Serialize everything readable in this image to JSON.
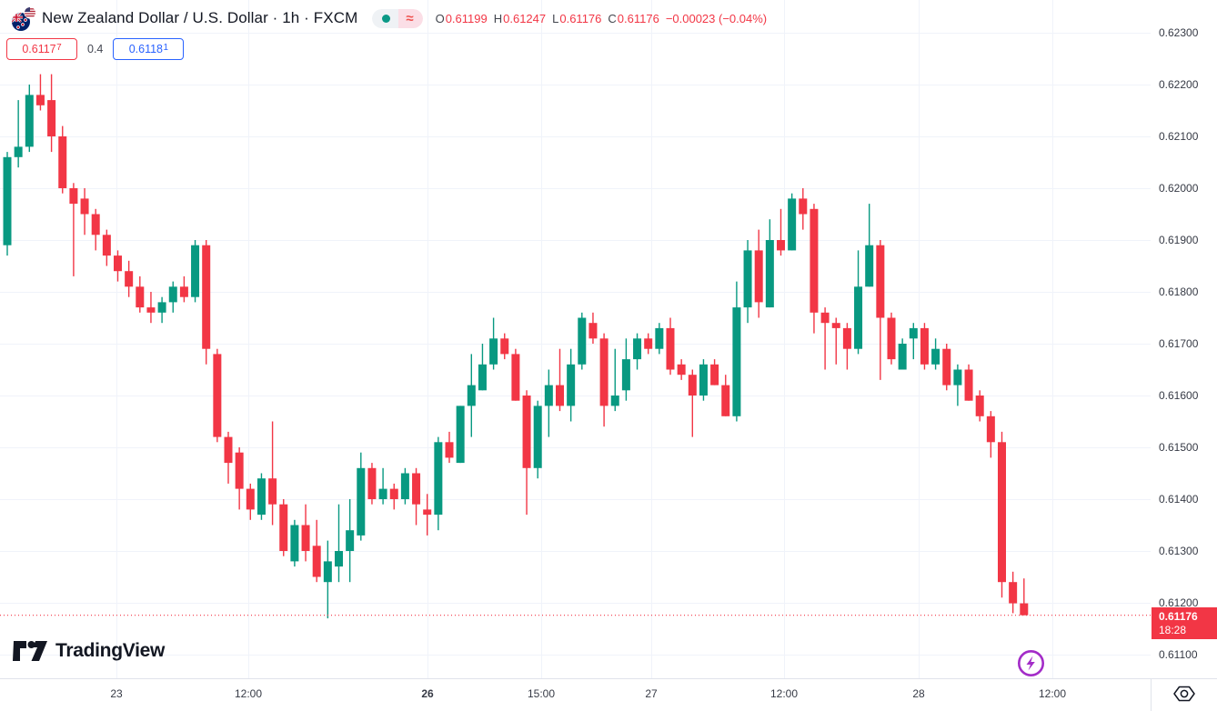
{
  "header": {
    "title": "New Zealand Dollar / U.S. Dollar · 1h · FXCM",
    "market_status_icon": "market-open-dot",
    "data_mode_icon": "approximate-data",
    "ohlc": {
      "o_label": "O",
      "o": "0.61199",
      "h_label": "H",
      "h": "0.61247",
      "l_label": "L",
      "l": "0.61176",
      "c_label": "C",
      "c": "0.61176",
      "change": "−0.00023 (−0.04%)"
    },
    "bid": {
      "main": "0.6117",
      "sup": "7"
    },
    "spread": "0.4",
    "ask": {
      "main": "0.6118",
      "sup": "1"
    }
  },
  "logo": {
    "text": "TradingView"
  },
  "colors": {
    "up": "#089981",
    "down": "#f23645",
    "sell": "#f23645",
    "buy": "#2962ff",
    "grid": "#f0f3fa",
    "axis_text": "#363a45",
    "title_text": "#131722",
    "badge_bg": "#f23645",
    "fab_purple": "#a32cc8"
  },
  "chart_data": {
    "type": "candlestick",
    "title": "New Zealand Dollar / U.S. Dollar",
    "interval": "1h",
    "venue": "FXCM",
    "grid": true,
    "ylim": [
      0.611,
      0.6235
    ],
    "last_price": "0.61176",
    "countdown": "18:28",
    "price_axis_ticks": [
      "0.62300",
      "0.62200",
      "0.62100",
      "0.62000",
      "0.61900",
      "0.61800",
      "0.61700",
      "0.61600",
      "0.61500",
      "0.61400",
      "0.61300",
      "0.61200",
      "0.61100"
    ],
    "time_axis_ticks": [
      {
        "label": "23",
        "x": 128,
        "bold": false
      },
      {
        "label": "12:00",
        "x": 273,
        "bold": false
      },
      {
        "label": "26",
        "x": 470,
        "bold": true
      },
      {
        "label": "15:00",
        "x": 595,
        "bold": false
      },
      {
        "label": "27",
        "x": 716,
        "bold": false
      },
      {
        "label": "12:00",
        "x": 862,
        "bold": false
      },
      {
        "label": "28",
        "x": 1010,
        "bold": false
      },
      {
        "label": "12:00",
        "x": 1157,
        "bold": false
      }
    ],
    "candles": [
      [
        0.6189,
        0.6207,
        0.6187,
        0.6206
      ],
      [
        0.6206,
        0.6217,
        0.6204,
        0.6208
      ],
      [
        0.6208,
        0.622,
        0.6207,
        0.6218
      ],
      [
        0.6218,
        0.6222,
        0.6215,
        0.6216
      ],
      [
        0.6217,
        0.6222,
        0.6207,
        0.621
      ],
      [
        0.621,
        0.6212,
        0.6199,
        0.62
      ],
      [
        0.62,
        0.6201,
        0.6183,
        0.6197
      ],
      [
        0.6198,
        0.62,
        0.6191,
        0.6195
      ],
      [
        0.6195,
        0.6196,
        0.6188,
        0.6191
      ],
      [
        0.6191,
        0.6192,
        0.6185,
        0.6187
      ],
      [
        0.6187,
        0.6188,
        0.6182,
        0.6184
      ],
      [
        0.6184,
        0.6186,
        0.6179,
        0.6181
      ],
      [
        0.6181,
        0.6183,
        0.6176,
        0.6177
      ],
      [
        0.6177,
        0.618,
        0.6174,
        0.6176
      ],
      [
        0.6176,
        0.6179,
        0.6174,
        0.6178
      ],
      [
        0.6178,
        0.6182,
        0.6176,
        0.6181
      ],
      [
        0.6181,
        0.6183,
        0.6178,
        0.6179
      ],
      [
        0.6179,
        0.619,
        0.6178,
        0.6189
      ],
      [
        0.6189,
        0.619,
        0.6166,
        0.6169
      ],
      [
        0.6168,
        0.6169,
        0.6151,
        0.6152
      ],
      [
        0.6152,
        0.6153,
        0.6143,
        0.6147
      ],
      [
        0.6149,
        0.615,
        0.6138,
        0.6142
      ],
      [
        0.6142,
        0.6143,
        0.6136,
        0.6138
      ],
      [
        0.6137,
        0.6145,
        0.6136,
        0.6144
      ],
      [
        0.6144,
        0.6155,
        0.6135,
        0.6139
      ],
      [
        0.6139,
        0.614,
        0.6129,
        0.613
      ],
      [
        0.6128,
        0.6136,
        0.6127,
        0.6135
      ],
      [
        0.6135,
        0.6139,
        0.6128,
        0.613
      ],
      [
        0.6131,
        0.6136,
        0.6124,
        0.6125
      ],
      [
        0.6124,
        0.6132,
        0.6117,
        0.6128
      ],
      [
        0.6127,
        0.6139,
        0.6124,
        0.613
      ],
      [
        0.613,
        0.614,
        0.6124,
        0.6134
      ],
      [
        0.6133,
        0.6149,
        0.6132,
        0.6146
      ],
      [
        0.6146,
        0.6147,
        0.6139,
        0.614
      ],
      [
        0.614,
        0.6146,
        0.6139,
        0.6142
      ],
      [
        0.6142,
        0.6143,
        0.6138,
        0.614
      ],
      [
        0.614,
        0.6146,
        0.6139,
        0.6145
      ],
      [
        0.6145,
        0.6146,
        0.6135,
        0.6139
      ],
      [
        0.6138,
        0.6141,
        0.6133,
        0.6137
      ],
      [
        0.6137,
        0.6152,
        0.6134,
        0.6151
      ],
      [
        0.6151,
        0.6153,
        0.6147,
        0.6148
      ],
      [
        0.6147,
        0.6158,
        0.6147,
        0.6158
      ],
      [
        0.6158,
        0.6168,
        0.6152,
        0.6162
      ],
      [
        0.6161,
        0.617,
        0.6161,
        0.6166
      ],
      [
        0.6166,
        0.6175,
        0.6165,
        0.6171
      ],
      [
        0.6171,
        0.6172,
        0.6167,
        0.6168
      ],
      [
        0.6168,
        0.6169,
        0.6159,
        0.6159
      ],
      [
        0.616,
        0.6161,
        0.6137,
        0.6146
      ],
      [
        0.6146,
        0.6159,
        0.6144,
        0.6158
      ],
      [
        0.6158,
        0.6165,
        0.6152,
        0.6162
      ],
      [
        0.6162,
        0.6169,
        0.6157,
        0.6158
      ],
      [
        0.6158,
        0.6169,
        0.6155,
        0.6166
      ],
      [
        0.6166,
        0.6176,
        0.6165,
        0.6175
      ],
      [
        0.6174,
        0.6176,
        0.617,
        0.6171
      ],
      [
        0.6171,
        0.6172,
        0.6154,
        0.6158
      ],
      [
        0.6158,
        0.6169,
        0.6157,
        0.616
      ],
      [
        0.6161,
        0.6171,
        0.6159,
        0.6167
      ],
      [
        0.6167,
        0.6172,
        0.6165,
        0.6171
      ],
      [
        0.6171,
        0.6172,
        0.6168,
        0.6169
      ],
      [
        0.6169,
        0.6174,
        0.6168,
        0.6173
      ],
      [
        0.6173,
        0.6175,
        0.6164,
        0.6165
      ],
      [
        0.6166,
        0.6167,
        0.6163,
        0.6164
      ],
      [
        0.6164,
        0.6165,
        0.6152,
        0.616
      ],
      [
        0.616,
        0.6167,
        0.6159,
        0.6166
      ],
      [
        0.6166,
        0.6167,
        0.6162,
        0.6162
      ],
      [
        0.6162,
        0.6164,
        0.6156,
        0.6156
      ],
      [
        0.6156,
        0.6182,
        0.6155,
        0.6177
      ],
      [
        0.6177,
        0.619,
        0.6174,
        0.6188
      ],
      [
        0.6188,
        0.6192,
        0.6175,
        0.6178
      ],
      [
        0.6177,
        0.6194,
        0.6177,
        0.619
      ],
      [
        0.619,
        0.6196,
        0.6187,
        0.6188
      ],
      [
        0.6188,
        0.6199,
        0.6188,
        0.6198
      ],
      [
        0.6198,
        0.62,
        0.6192,
        0.6195
      ],
      [
        0.6196,
        0.6197,
        0.6172,
        0.6176
      ],
      [
        0.6176,
        0.6177,
        0.6165,
        0.6174
      ],
      [
        0.6174,
        0.6175,
        0.6166,
        0.6173
      ],
      [
        0.6173,
        0.6174,
        0.6165,
        0.6169
      ],
      [
        0.6169,
        0.6188,
        0.6168,
        0.6181
      ],
      [
        0.6181,
        0.6197,
        0.6181,
        0.6189
      ],
      [
        0.6189,
        0.619,
        0.6163,
        0.6175
      ],
      [
        0.6175,
        0.6176,
        0.6166,
        0.6167
      ],
      [
        0.6165,
        0.6171,
        0.6165,
        0.617
      ],
      [
        0.6171,
        0.6174,
        0.6167,
        0.6173
      ],
      [
        0.6173,
        0.6174,
        0.6165,
        0.6166
      ],
      [
        0.6166,
        0.6171,
        0.6165,
        0.6169
      ],
      [
        0.6169,
        0.617,
        0.6161,
        0.6162
      ],
      [
        0.6162,
        0.6166,
        0.6158,
        0.6165
      ],
      [
        0.6165,
        0.6166,
        0.6159,
        0.6159
      ],
      [
        0.616,
        0.6161,
        0.6155,
        0.6156
      ],
      [
        0.6156,
        0.6157,
        0.6148,
        0.6151
      ],
      [
        0.6151,
        0.6153,
        0.6121,
        0.6124
      ],
      [
        0.6124,
        0.6126,
        0.6118,
        0.61199
      ],
      [
        0.61199,
        0.61247,
        0.61176,
        0.61176
      ]
    ]
  }
}
